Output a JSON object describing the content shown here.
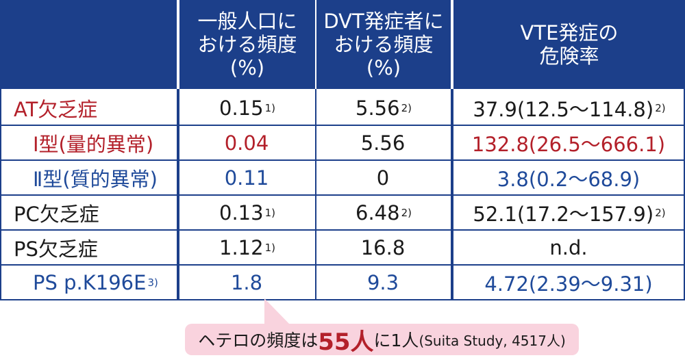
{
  "header": {
    "col0": "",
    "col1": [
      "一般人口に",
      "おける頻度",
      "(%)"
    ],
    "col2": [
      "DVT発症者に",
      "おける頻度",
      "(%)"
    ],
    "col3": [
      "VTE発症の",
      "危険率"
    ]
  },
  "rows": [
    {
      "label": "AT欠乏症",
      "label_color": "red",
      "indent": false,
      "v1": "0.15",
      "v1_sup": "1)",
      "v2": "5.56",
      "v2_sup": "2)",
      "v3": "37.9(12.5～114.8)",
      "v3_sup": "2)",
      "value_color": "black"
    },
    {
      "label": "Ⅰ型(量的異常)",
      "label_color": "red",
      "indent": true,
      "v1": "0.04",
      "v1_sup": "",
      "v2": "5.56",
      "v2_sup": "",
      "v3": "132.8(26.5～666.1)",
      "v3_sup": "",
      "value_color": "red",
      "v2_color": "black"
    },
    {
      "label": "Ⅱ型(質的異常)",
      "label_color": "blue",
      "indent": true,
      "v1": "0.11",
      "v1_sup": "",
      "v2": "0",
      "v2_sup": "",
      "v3": "3.8(0.2～68.9)",
      "v3_sup": "",
      "value_color": "blue",
      "v2_color": "black"
    },
    {
      "label": "PC欠乏症",
      "label_color": "black",
      "indent": false,
      "v1": "0.13",
      "v1_sup": "1)",
      "v2": "6.48",
      "v2_sup": "2)",
      "v3": "52.1(17.2～157.9)",
      "v3_sup": "2)",
      "value_color": "black"
    },
    {
      "label": "PS欠乏症",
      "label_color": "black",
      "indent": false,
      "v1": "1.12",
      "v1_sup": "1)",
      "v2": "16.8",
      "v2_sup": "",
      "v3": "n.d.",
      "v3_sup": "",
      "value_color": "black"
    },
    {
      "label": "PS p.K196E",
      "label_sup": "3)",
      "label_color": "blue",
      "indent": true,
      "v1": "1.8",
      "v1_sup": "",
      "v2": "9.3",
      "v2_sup": "",
      "v3": "4.72(2.39～9.31)",
      "v3_sup": "",
      "value_color": "blue"
    }
  ],
  "callout": {
    "prefix": "ヘテロの頻度は",
    "number": "55人",
    "suffix": "に1人",
    "note": "(Suita Study, 4517人)"
  },
  "colors": {
    "header_bg": "#1c3f8a",
    "red": "#b3202a",
    "blue": "#1f4a9a",
    "callout_bg": "#f9d3de"
  }
}
